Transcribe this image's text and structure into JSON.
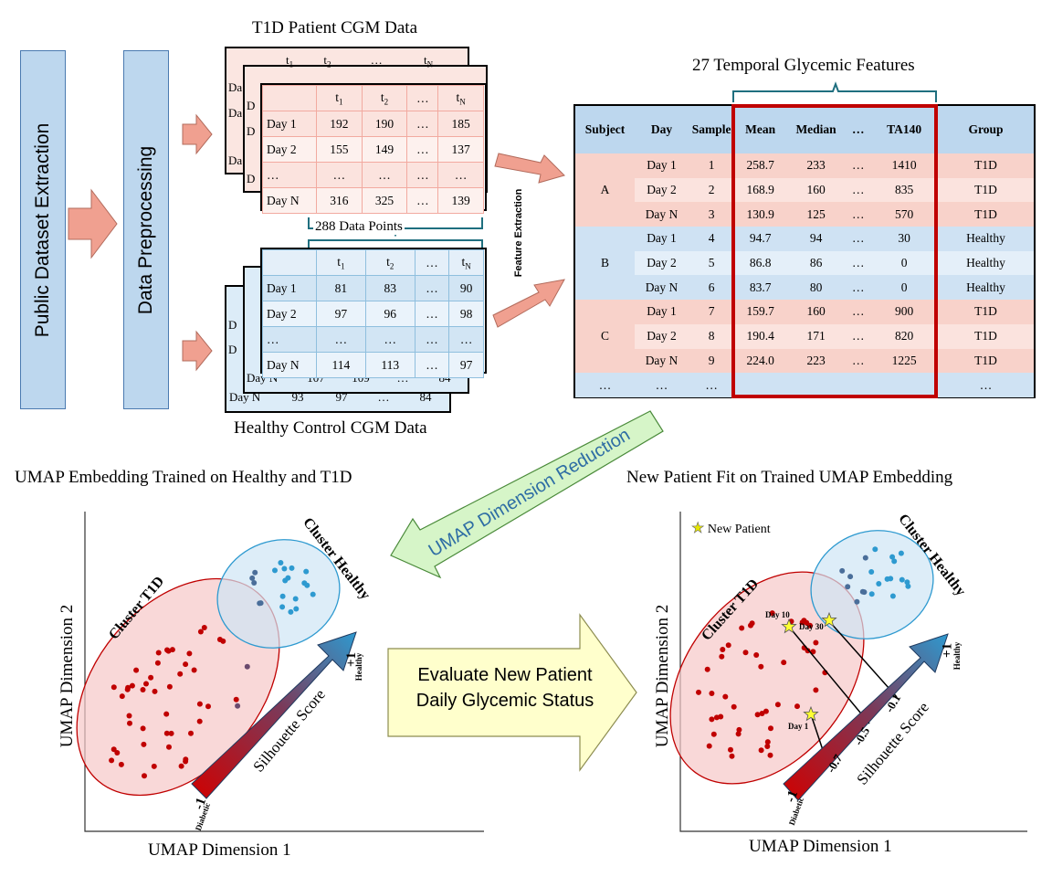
{
  "pipeline": {
    "extraction_label": "Public Dataset Extraction",
    "preprocessing_label": "Data Preprocessing",
    "feature_extraction_label": "Feature Extraction",
    "umap_reduction_label": "UMAP Dimension Reduction",
    "evaluate_label_line1": "Evaluate New Patient",
    "evaluate_label_line2": "Daily Glycemic Status"
  },
  "t1d_table": {
    "title": "T1D Patient CGM Data",
    "header": [
      "",
      "t",
      "t",
      "…",
      "t"
    ],
    "header_subs": [
      "",
      "1",
      "2",
      "",
      "N"
    ],
    "rows": [
      [
        "Day 1",
        "192",
        "190",
        "…",
        "185"
      ],
      [
        "Day 2",
        "155",
        "149",
        "…",
        "137"
      ],
      [
        "…",
        "…",
        "…",
        "…",
        "…"
      ],
      [
        "Day N",
        "316",
        "325",
        "…",
        "139"
      ]
    ],
    "back_header": [
      "t",
      "t",
      "…",
      "t"
    ],
    "back_header_subs": [
      "1",
      "2",
      "",
      "N"
    ],
    "back_cells": [
      "Da",
      "Da",
      "Da",
      "D",
      "D",
      "D"
    ]
  },
  "data_points_label": "288  Data  Points",
  "healthy_table": {
    "title": "Healthy Control CGM Data",
    "header": [
      "",
      "t",
      "t",
      "…",
      "t"
    ],
    "header_subs": [
      "",
      "1",
      "2",
      "",
      "N"
    ],
    "rows": [
      [
        "Day 1",
        "81",
        "83",
        "…",
        "90"
      ],
      [
        "Day 2",
        "97",
        "96",
        "…",
        "98"
      ],
      [
        "…",
        "…",
        "…",
        "…",
        "…"
      ],
      [
        "Day N",
        "114",
        "113",
        "…",
        "97"
      ]
    ],
    "back_row1": [
      "Day N",
      "107",
      "109",
      "…",
      "84"
    ],
    "back_row2": [
      "Day N",
      "93",
      "97",
      "…",
      "84"
    ],
    "back_cells": [
      "D",
      "D"
    ]
  },
  "features": {
    "title": "27 Temporal Glycemic Features",
    "columns": [
      "Subject",
      "Day",
      "Sample",
      "Mean",
      "Median",
      "…",
      "TA140",
      "Group"
    ],
    "rows": [
      [
        "A",
        "Day 1",
        "1",
        "258.7",
        "233",
        "…",
        "1410",
        "T1D"
      ],
      [
        "",
        "Day 2",
        "2",
        "168.9",
        "160",
        "…",
        "835",
        "T1D"
      ],
      [
        "",
        "Day N",
        "3",
        "130.9",
        "125",
        "…",
        "570",
        "T1D"
      ],
      [
        "B",
        "Day 1",
        "4",
        "94.7",
        "94",
        "…",
        "30",
        "Healthy"
      ],
      [
        "",
        "Day 2",
        "5",
        "86.8",
        "86",
        "…",
        "0",
        "Healthy"
      ],
      [
        "",
        "Day N",
        "6",
        "83.7",
        "80",
        "…",
        "0",
        "Healthy"
      ],
      [
        "C",
        "Day 1",
        "7",
        "159.7",
        "160",
        "…",
        "900",
        "T1D"
      ],
      [
        "",
        "Day 2",
        "8",
        "190.4",
        "171",
        "…",
        "820",
        "T1D"
      ],
      [
        "",
        "Day N",
        "9",
        "224.0",
        "223",
        "…",
        "1225",
        "T1D"
      ],
      [
        "…",
        "…",
        "…",
        "",
        "",
        "",
        "",
        "…"
      ]
    ]
  },
  "left_plot": {
    "title": "UMAP Embedding Trained on Healthy and T1D",
    "xlabel": "UMAP Dimension 1",
    "ylabel": "UMAP Dimension 2",
    "cluster_t1d": "Cluster T1D",
    "cluster_healthy": "Cluster Healthy",
    "score_label": "Silhouette Score",
    "plus_label": "+1",
    "plus_sub": "Healthy",
    "minus_label": "-1",
    "minus_sub": "Diabetic"
  },
  "right_plot": {
    "title": "New Patient Fit on Trained UMAP Embedding",
    "xlabel": "UMAP Dimension 1",
    "ylabel": "UMAP Dimension 2",
    "cluster_t1d": "Cluster T1D",
    "cluster_healthy": "Cluster Healthy",
    "legend_new_patient": "New Patient",
    "day_labels": [
      "Day 10",
      "Day 30",
      "Day 1"
    ],
    "score_label": "Silhouette Score",
    "ticks": [
      "-0.7",
      "-0.5",
      "-0.1"
    ],
    "plus_label": "+1",
    "plus_sub": "Healthy",
    "minus_label": "-1",
    "minus_sub": "Diabetic"
  },
  "colors": {
    "t1d_red": "#c00000",
    "healthy_blue": "#2e9ad0",
    "box_blue": "#bdd7ee",
    "arrow_salmon": "#f0a090",
    "feature_highlight": "#c00000"
  }
}
